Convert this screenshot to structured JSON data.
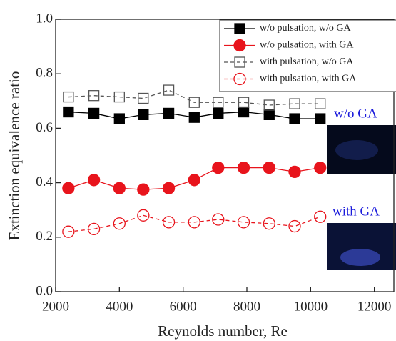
{
  "chart_data": {
    "type": "line",
    "xlabel": "Reynolds number, Re",
    "ylabel": "Extinction equivalence ratio",
    "x": [
      2400,
      3200,
      4000,
      4750,
      5550,
      6350,
      7100,
      7900,
      8700,
      9500,
      10300
    ],
    "series": [
      {
        "name": "w/o pulsation, w/o GA",
        "color": "#000000",
        "marker": "square",
        "filled": true,
        "dashed": false,
        "values": [
          0.66,
          0.655,
          0.635,
          0.65,
          0.655,
          0.64,
          0.655,
          0.66,
          0.65,
          0.635,
          0.635
        ]
      },
      {
        "name": "w/o pulsation, with GA",
        "color": "#e8141c",
        "marker": "circle",
        "filled": true,
        "dashed": false,
        "values": [
          0.38,
          0.41,
          0.38,
          0.375,
          0.38,
          0.41,
          0.455,
          0.455,
          0.455,
          0.44,
          0.455
        ]
      },
      {
        "name": "with pulsation, w/o GA",
        "color": "#555555",
        "marker": "square",
        "filled": false,
        "dashed": true,
        "values": [
          0.715,
          0.72,
          0.715,
          0.71,
          0.74,
          0.695,
          0.695,
          0.695,
          0.685,
          0.69,
          0.69
        ]
      },
      {
        "name": "with pulsation, with GA",
        "color": "#e8141c",
        "marker": "circle",
        "filled": false,
        "dashed": true,
        "values": [
          0.22,
          0.23,
          0.25,
          0.28,
          0.255,
          0.255,
          0.265,
          0.255,
          0.25,
          0.24,
          0.275
        ]
      }
    ],
    "xlim": [
      2000,
      12500
    ],
    "ylim": [
      0,
      1
    ],
    "xticks": [
      2000,
      4000,
      6000,
      8000,
      10000,
      12000
    ],
    "yticks": [
      {
        "value": 0,
        "label": "0.0"
      },
      0.2,
      0.4,
      0.6,
      0.8,
      {
        "value": 1,
        "label": "1.0"
      }
    ],
    "annotations": [
      "w/o GA",
      "with GA"
    ],
    "legend": "upper right"
  }
}
